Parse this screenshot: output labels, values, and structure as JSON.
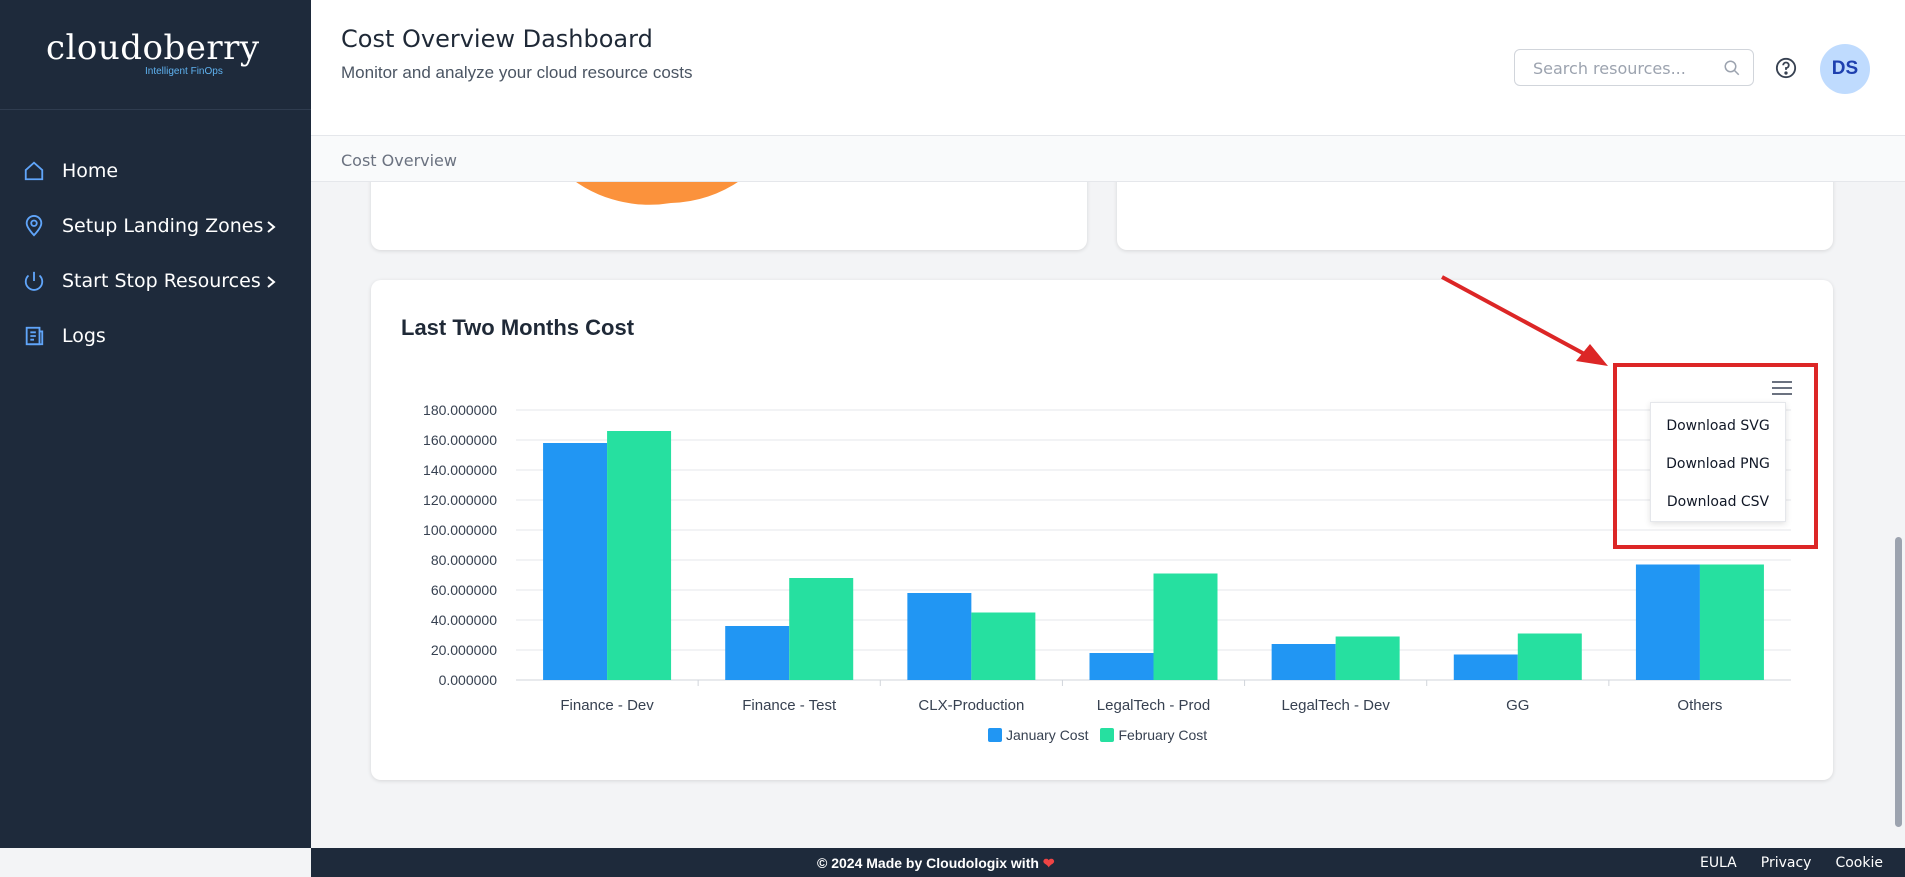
{
  "brand": {
    "name": "cloudoberry",
    "tagline": "Intelligent FinOps"
  },
  "sidebar": {
    "items": [
      {
        "label": "Home",
        "icon": "home-icon"
      },
      {
        "label": "Setup Landing Zones",
        "icon": "location-pin-icon",
        "has_submenu": true
      },
      {
        "label": "Start Stop Resources",
        "icon": "power-icon",
        "has_submenu": true
      },
      {
        "label": "Logs",
        "icon": "document-icon"
      }
    ]
  },
  "header": {
    "title": "Cost Overview Dashboard",
    "subtitle": "Monitor and analyze your cloud resource costs",
    "search_placeholder": "Search resources...",
    "avatar_initials": "DS"
  },
  "breadcrumb": {
    "current": "Cost Overview"
  },
  "chart_card": {
    "title": "Last Two Months Cost",
    "menu": {
      "items": [
        "Download SVG",
        "Download PNG",
        "Download CSV"
      ]
    }
  },
  "chart_data": {
    "type": "bar",
    "title": "Last Two Months Cost",
    "categories": [
      "Finance - Dev",
      "Finance - Test",
      "CLX-Production",
      "LegalTech - Prod",
      "LegalTech - Dev",
      "GG",
      "Others"
    ],
    "series": [
      {
        "name": "January Cost",
        "color": "#2196f3",
        "values": [
          158,
          36,
          58,
          18,
          24,
          17,
          77
        ]
      },
      {
        "name": "February Cost",
        "color": "#26e0a0",
        "values": [
          166,
          68,
          45,
          71,
          29,
          31,
          77
        ]
      }
    ],
    "yticks": [
      "0.000000",
      "20.000000",
      "40.000000",
      "60.000000",
      "80.000000",
      "100.000000",
      "120.000000",
      "140.000000",
      "160.000000",
      "180.000000"
    ],
    "ylim": [
      0,
      180
    ],
    "grid": true,
    "legend": "bottom-center"
  },
  "footer": {
    "copyright": "© 2024 Made by Cloudologix with",
    "heart": "❤",
    "links": [
      "EULA",
      "Privacy",
      "Cookie"
    ]
  }
}
